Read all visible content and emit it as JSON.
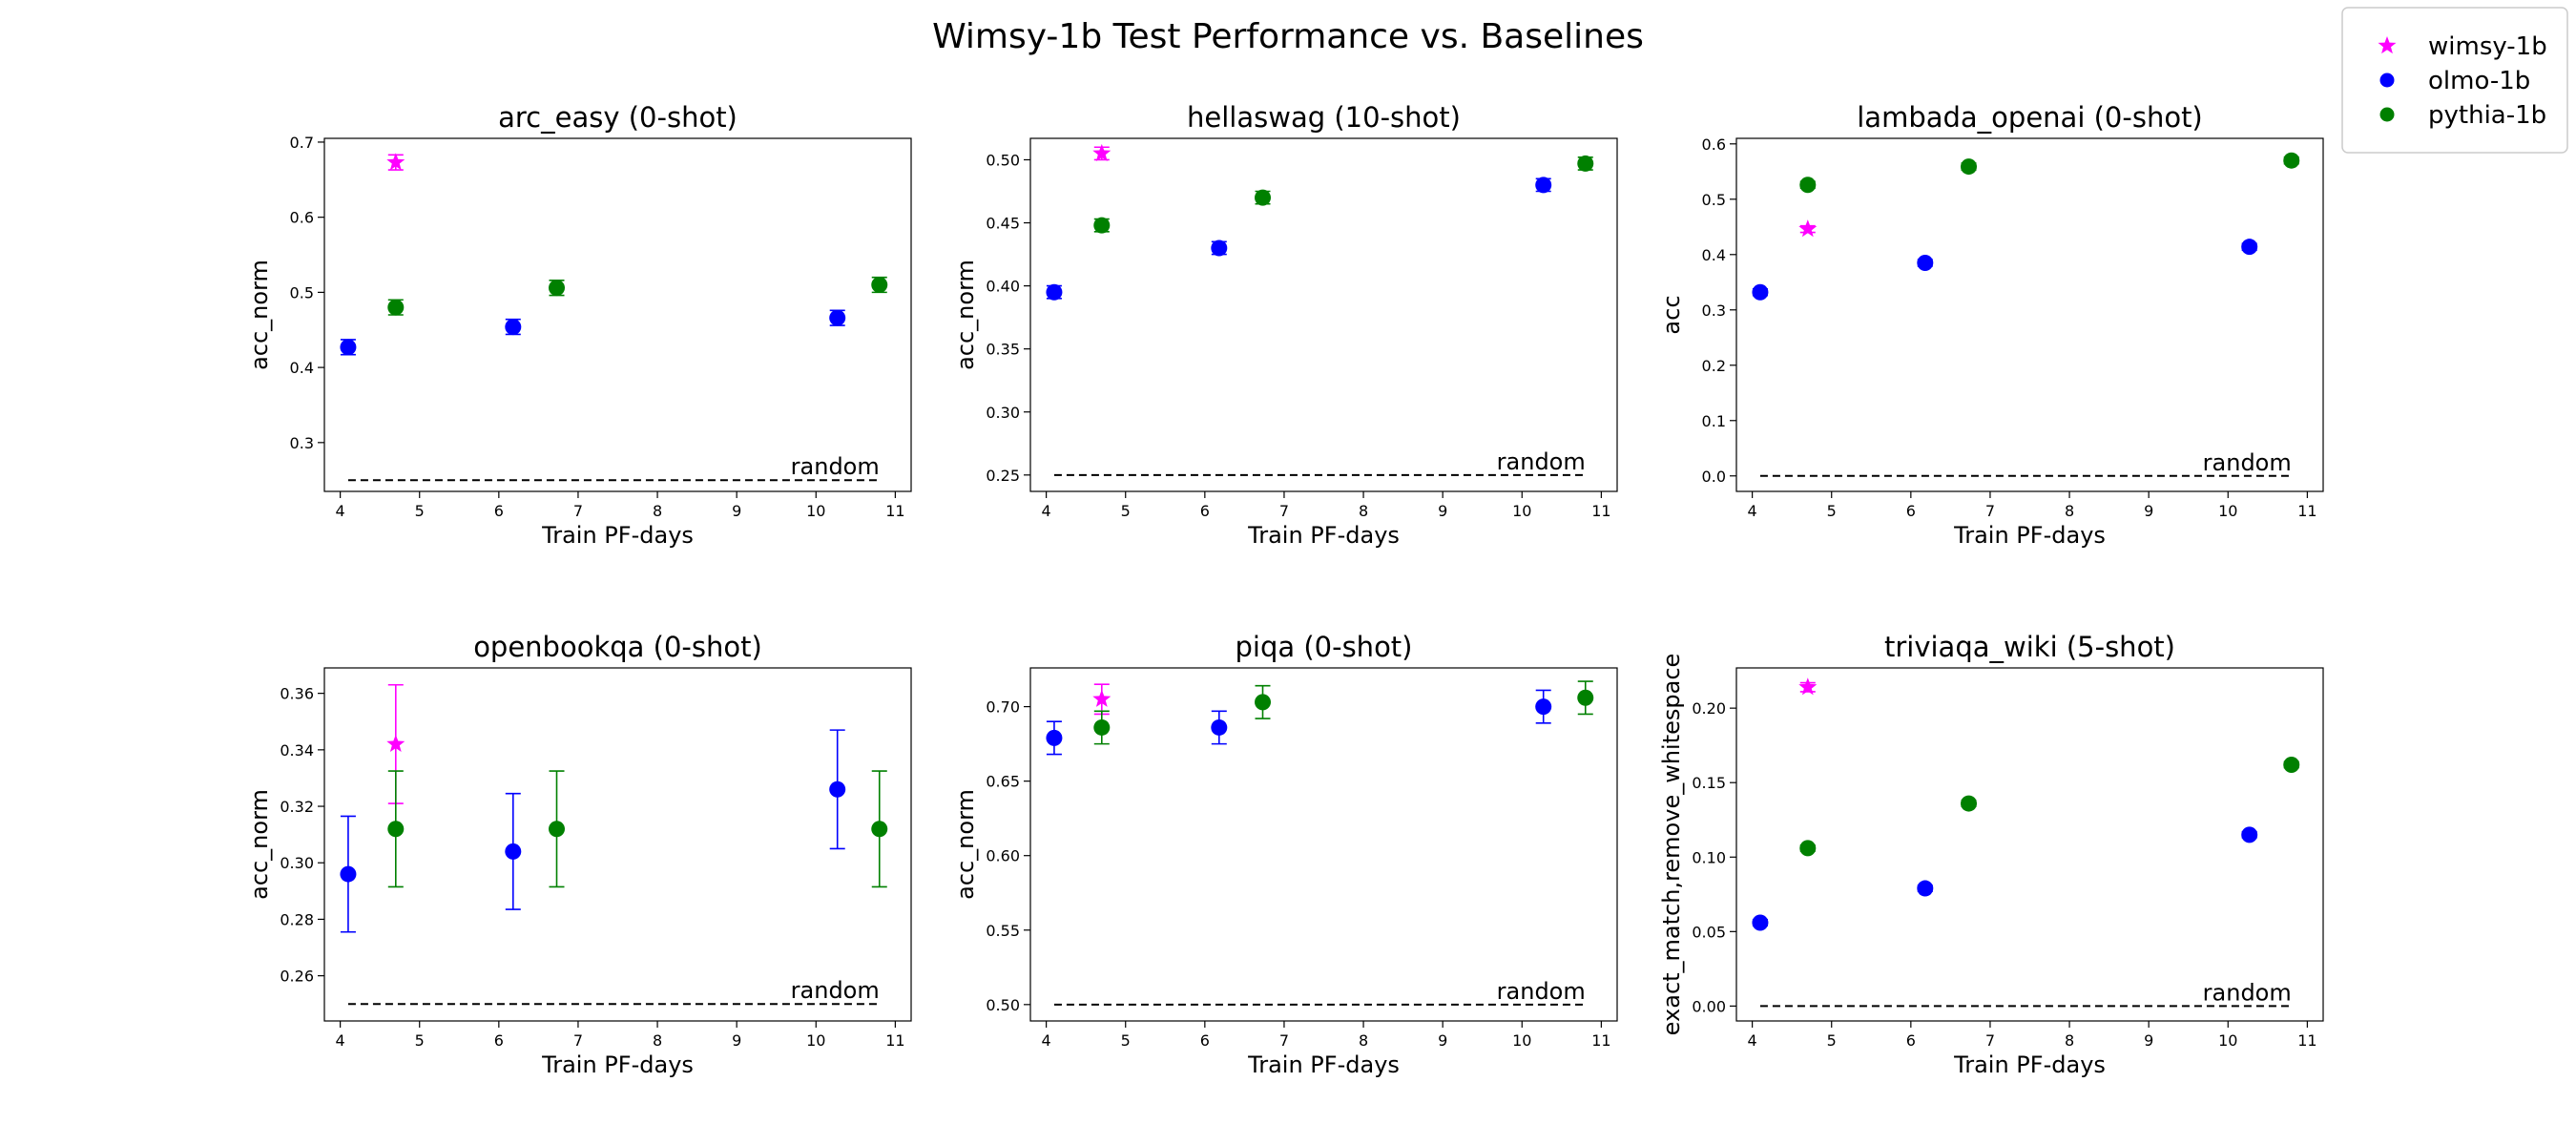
{
  "figure": {
    "title": "Wimsy-1b Test Performance vs. Baselines"
  },
  "legend": {
    "placement": "top-right",
    "entries": [
      {
        "name": "wimsy-1b",
        "color": "#ff00ff",
        "marker": "star"
      },
      {
        "name": "olmo-1b",
        "color": "#0000ff",
        "marker": "circle"
      },
      {
        "name": "pythia-1b",
        "color": "#008000",
        "marker": "circle"
      }
    ]
  },
  "chart_data": [
    {
      "type": "scatter",
      "title": "arc_easy (0-shot)",
      "xlabel": "Train PF-days",
      "ylabel": "acc_norm",
      "xlim": [
        3.8,
        11.2
      ],
      "ylim": [
        0.235,
        0.705
      ],
      "xticks": [
        4,
        5,
        6,
        7,
        8,
        9,
        10,
        11
      ],
      "yticks": [
        0.3,
        0.4,
        0.5,
        0.6,
        0.7
      ],
      "yfmt": 1,
      "random": {
        "label": "random",
        "value": 0.25,
        "x": [
          4.1,
          10.8
        ]
      },
      "series": [
        {
          "name": "wimsy-1b",
          "color": "#ff00ff",
          "marker": "star",
          "x": [
            4.7
          ],
          "y": [
            0.673
          ],
          "err": [
            0.01
          ]
        },
        {
          "name": "olmo-1b",
          "color": "#0000ff",
          "marker": "circle",
          "x": [
            4.1,
            6.18,
            10.27
          ],
          "y": [
            0.427,
            0.454,
            0.466
          ],
          "err": [
            0.01,
            0.01,
            0.01
          ]
        },
        {
          "name": "pythia-1b",
          "color": "#008000",
          "marker": "circle",
          "x": [
            4.7,
            6.73,
            10.8
          ],
          "y": [
            0.48,
            0.506,
            0.51
          ],
          "err": [
            0.01,
            0.01,
            0.01
          ]
        }
      ]
    },
    {
      "type": "scatter",
      "title": "hellaswag (10-shot)",
      "xlabel": "Train PF-days",
      "ylabel": "acc_norm",
      "xlim": [
        3.8,
        11.2
      ],
      "ylim": [
        0.237,
        0.517
      ],
      "xticks": [
        4,
        5,
        6,
        7,
        8,
        9,
        10,
        11
      ],
      "yticks": [
        0.25,
        0.3,
        0.35,
        0.4,
        0.45,
        0.5
      ],
      "yfmt": 2,
      "random": {
        "label": "random",
        "value": 0.25,
        "x": [
          4.1,
          10.8
        ]
      },
      "series": [
        {
          "name": "wimsy-1b",
          "color": "#ff00ff",
          "marker": "star",
          "x": [
            4.7
          ],
          "y": [
            0.505
          ],
          "err": [
            0.005
          ]
        },
        {
          "name": "olmo-1b",
          "color": "#0000ff",
          "marker": "circle",
          "x": [
            4.1,
            6.18,
            10.27
          ],
          "y": [
            0.395,
            0.43,
            0.48
          ],
          "err": [
            0.005,
            0.005,
            0.005
          ]
        },
        {
          "name": "pythia-1b",
          "color": "#008000",
          "marker": "circle",
          "x": [
            4.7,
            6.73,
            10.8
          ],
          "y": [
            0.448,
            0.47,
            0.497
          ],
          "err": [
            0.005,
            0.005,
            0.005
          ]
        }
      ]
    },
    {
      "type": "scatter",
      "title": "lambada_openai (0-shot)",
      "xlabel": "Train PF-days",
      "ylabel": "acc",
      "xlim": [
        3.8,
        11.2
      ],
      "ylim": [
        -0.028,
        0.61
      ],
      "xticks": [
        4,
        5,
        6,
        7,
        8,
        9,
        10,
        11
      ],
      "yticks": [
        0.0,
        0.1,
        0.2,
        0.3,
        0.4,
        0.5,
        0.6
      ],
      "yfmt": 1,
      "random": {
        "label": "random",
        "value": 0.0,
        "x": [
          4.1,
          10.8
        ]
      },
      "series": [
        {
          "name": "wimsy-1b",
          "color": "#ff00ff",
          "marker": "star",
          "x": [
            4.7
          ],
          "y": [
            0.446
          ],
          "err": [
            0.006
          ]
        },
        {
          "name": "olmo-1b",
          "color": "#0000ff",
          "marker": "circle",
          "x": [
            4.1,
            6.18,
            10.27
          ],
          "y": [
            0.332,
            0.385,
            0.414
          ],
          "err": [
            0.006,
            0.006,
            0.006
          ]
        },
        {
          "name": "pythia-1b",
          "color": "#008000",
          "marker": "circle",
          "x": [
            4.7,
            6.73,
            10.8
          ],
          "y": [
            0.526,
            0.559,
            0.57
          ],
          "err": [
            0.006,
            0.006,
            0.006
          ]
        }
      ]
    },
    {
      "type": "scatter",
      "title": "openbookqa (0-shot)",
      "xlabel": "Train PF-days",
      "ylabel": "acc_norm",
      "xlim": [
        3.8,
        11.2
      ],
      "ylim": [
        0.244,
        0.369
      ],
      "xticks": [
        4,
        5,
        6,
        7,
        8,
        9,
        10,
        11
      ],
      "yticks": [
        0.26,
        0.28,
        0.3,
        0.32,
        0.34,
        0.36
      ],
      "yfmt": 2,
      "random": {
        "label": "random",
        "value": 0.25,
        "x": [
          4.1,
          10.8
        ]
      },
      "series": [
        {
          "name": "wimsy-1b",
          "color": "#ff00ff",
          "marker": "star",
          "x": [
            4.7
          ],
          "y": [
            0.342
          ],
          "err": [
            0.021
          ]
        },
        {
          "name": "olmo-1b",
          "color": "#0000ff",
          "marker": "circle",
          "x": [
            4.1,
            6.18,
            10.27
          ],
          "y": [
            0.296,
            0.304,
            0.326
          ],
          "err": [
            0.0205,
            0.0205,
            0.021
          ]
        },
        {
          "name": "pythia-1b",
          "color": "#008000",
          "marker": "circle",
          "x": [
            4.7,
            6.73,
            10.8
          ],
          "y": [
            0.312,
            0.312,
            0.312
          ],
          "err": [
            0.0205,
            0.0205,
            0.0205
          ]
        }
      ]
    },
    {
      "type": "scatter",
      "title": "piqa (0-shot)",
      "xlabel": "Train PF-days",
      "ylabel": "acc_norm",
      "xlim": [
        3.8,
        11.2
      ],
      "ylim": [
        0.489,
        0.726
      ],
      "xticks": [
        4,
        5,
        6,
        7,
        8,
        9,
        10,
        11
      ],
      "yticks": [
        0.5,
        0.55,
        0.6,
        0.65,
        0.7
      ],
      "yfmt": 2,
      "random": {
        "label": "random",
        "value": 0.5,
        "x": [
          4.1,
          10.8
        ]
      },
      "series": [
        {
          "name": "wimsy-1b",
          "color": "#ff00ff",
          "marker": "star",
          "x": [
            4.7
          ],
          "y": [
            0.705
          ],
          "err": [
            0.01
          ]
        },
        {
          "name": "olmo-1b",
          "color": "#0000ff",
          "marker": "circle",
          "x": [
            4.1,
            6.18,
            10.27
          ],
          "y": [
            0.679,
            0.686,
            0.7
          ],
          "err": [
            0.011,
            0.011,
            0.011
          ]
        },
        {
          "name": "pythia-1b",
          "color": "#008000",
          "marker": "circle",
          "x": [
            4.7,
            6.73,
            10.8
          ],
          "y": [
            0.686,
            0.703,
            0.706
          ],
          "err": [
            0.011,
            0.011,
            0.011
          ]
        }
      ]
    },
    {
      "type": "scatter",
      "title": "triviaqa_wiki (5-shot)",
      "xlabel": "Train PF-days",
      "ylabel": "exact_match,remove_whitespace",
      "xlim": [
        3.8,
        11.2
      ],
      "ylim": [
        -0.01,
        0.227
      ],
      "xticks": [
        4,
        5,
        6,
        7,
        8,
        9,
        10,
        11
      ],
      "yticks": [
        0.0,
        0.05,
        0.1,
        0.15,
        0.2
      ],
      "yfmt": 2,
      "random": {
        "label": "random",
        "value": 0.0,
        "x": [
          4.1,
          10.8
        ]
      },
      "series": [
        {
          "name": "wimsy-1b",
          "color": "#ff00ff",
          "marker": "star",
          "x": [
            4.7
          ],
          "y": [
            0.214
          ],
          "err": [
            0.003
          ]
        },
        {
          "name": "olmo-1b",
          "color": "#0000ff",
          "marker": "circle",
          "x": [
            4.1,
            6.18,
            10.27
          ],
          "y": [
            0.056,
            0.079,
            0.115
          ],
          "err": [
            0.002,
            0.002,
            0.002
          ]
        },
        {
          "name": "pythia-1b",
          "color": "#008000",
          "marker": "circle",
          "x": [
            4.7,
            6.73,
            10.8
          ],
          "y": [
            0.106,
            0.136,
            0.162
          ],
          "err": [
            0.002,
            0.002,
            0.002
          ]
        }
      ]
    }
  ]
}
